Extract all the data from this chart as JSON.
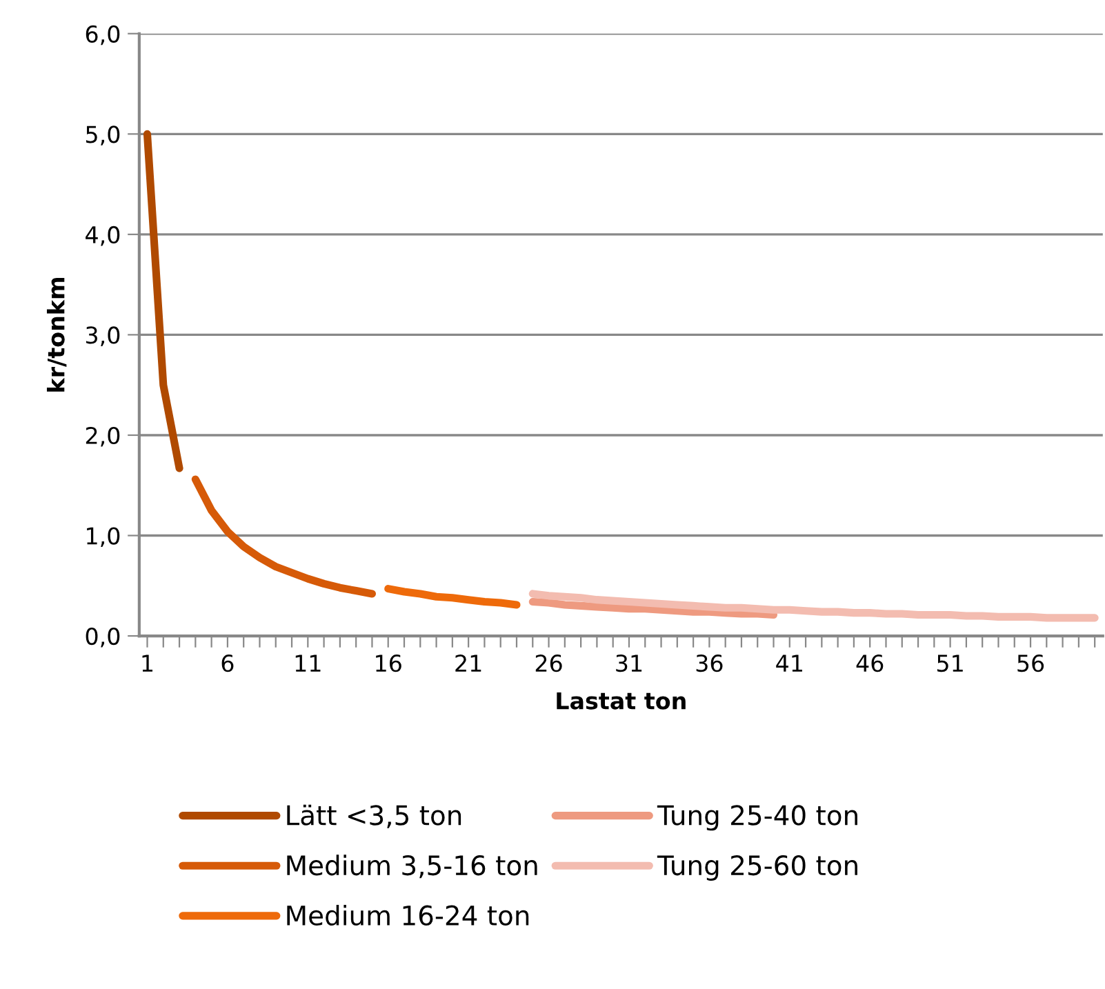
{
  "chart_data": {
    "type": "line",
    "xlabel": "Lastat ton",
    "ylabel": "kr/tonkm",
    "categories": [
      "1",
      null,
      null,
      null,
      null,
      "6",
      null,
      null,
      null,
      null,
      "11",
      null,
      null,
      null,
      null,
      "16",
      null,
      null,
      null,
      null,
      "21",
      null,
      null,
      null,
      null,
      "26",
      null,
      null,
      null,
      null,
      "31",
      null,
      null,
      null,
      null,
      "36",
      null,
      null,
      null,
      null,
      "41",
      null,
      null,
      null,
      null,
      "46",
      null,
      null,
      null,
      null,
      "51",
      null,
      null,
      null,
      null,
      "56",
      null,
      null,
      null,
      null
    ],
    "ylim": [
      0,
      6
    ],
    "yticks": [
      {
        "value": 0,
        "label": "0,0"
      },
      {
        "value": 1,
        "label": "1,0"
      },
      {
        "value": 2,
        "label": "2,0"
      },
      {
        "value": 3,
        "label": "3,0"
      },
      {
        "value": 4,
        "label": "4,0"
      },
      {
        "value": 5,
        "label": "5,0"
      },
      {
        "value": 6,
        "label": "6,0"
      }
    ],
    "grid": "y",
    "legend": "bottom",
    "marker": "none",
    "line_style": "solid",
    "series": [
      {
        "name": "Lätt <3,5 ton",
        "color": "#b04a00",
        "values": [
          5.0,
          2.5,
          1.67,
          null,
          null,
          null,
          null,
          null,
          null,
          null,
          null,
          null,
          null,
          null,
          null,
          null,
          null,
          null,
          null,
          null,
          null,
          null,
          null,
          null,
          null,
          null,
          null,
          null,
          null,
          null,
          null,
          null,
          null,
          null,
          null,
          null,
          null,
          null,
          null,
          null,
          null,
          null,
          null,
          null,
          null,
          null,
          null,
          null,
          null,
          null,
          null,
          null,
          null,
          null,
          null,
          null,
          null,
          null,
          null,
          null
        ]
      },
      {
        "name": "Medium 3,5-16 ton",
        "color": "#d65a08",
        "values": [
          null,
          null,
          null,
          1.56,
          1.25,
          1.04,
          0.89,
          0.78,
          0.69,
          0.63,
          0.57,
          0.52,
          0.48,
          0.45,
          0.42,
          null,
          null,
          null,
          null,
          null,
          null,
          null,
          null,
          null,
          null,
          null,
          null,
          null,
          null,
          null,
          null,
          null,
          null,
          null,
          null,
          null,
          null,
          null,
          null,
          null,
          null,
          null,
          null,
          null,
          null,
          null,
          null,
          null,
          null,
          null,
          null,
          null,
          null,
          null,
          null,
          null,
          null,
          null,
          null,
          null
        ]
      },
      {
        "name": "Medium 16-24 ton",
        "color": "#ee6a0a",
        "values": [
          null,
          null,
          null,
          null,
          null,
          null,
          null,
          null,
          null,
          null,
          null,
          null,
          null,
          null,
          null,
          0.47,
          0.44,
          0.42,
          0.39,
          0.38,
          0.36,
          0.34,
          0.33,
          0.31,
          null,
          null,
          null,
          null,
          null,
          null,
          null,
          null,
          null,
          null,
          null,
          null,
          null,
          null,
          null,
          null,
          null,
          null,
          null,
          null,
          null,
          null,
          null,
          null,
          null,
          null,
          null,
          null,
          null,
          null,
          null,
          null,
          null,
          null,
          null,
          null
        ]
      },
      {
        "name": "Tung 25-40 ton",
        "color": "#ee9a80",
        "values": [
          null,
          null,
          null,
          null,
          null,
          null,
          null,
          null,
          null,
          null,
          null,
          null,
          null,
          null,
          null,
          null,
          null,
          null,
          null,
          null,
          null,
          null,
          null,
          null,
          0.34,
          0.33,
          0.31,
          0.3,
          0.29,
          0.28,
          0.27,
          0.27,
          0.26,
          0.25,
          0.24,
          0.24,
          0.23,
          0.22,
          0.22,
          0.21,
          null,
          null,
          null,
          null,
          null,
          null,
          null,
          null,
          null,
          null,
          null,
          null,
          null,
          null,
          null,
          null,
          null,
          null,
          null,
          null
        ]
      },
      {
        "name": "Tung 25-60 ton",
        "color": "#f3bcb0",
        "values": [
          null,
          null,
          null,
          null,
          null,
          null,
          null,
          null,
          null,
          null,
          null,
          null,
          null,
          null,
          null,
          null,
          null,
          null,
          null,
          null,
          null,
          null,
          null,
          null,
          0.42,
          0.4,
          0.39,
          0.38,
          0.36,
          0.35,
          0.34,
          0.33,
          0.32,
          0.31,
          0.3,
          0.29,
          0.28,
          0.28,
          0.27,
          0.26,
          0.26,
          0.25,
          0.24,
          0.24,
          0.23,
          0.23,
          0.22,
          0.22,
          0.21,
          0.21,
          0.21,
          0.2,
          0.2,
          0.19,
          0.19,
          0.19,
          0.18,
          0.18,
          0.18,
          0.18
        ]
      }
    ]
  }
}
